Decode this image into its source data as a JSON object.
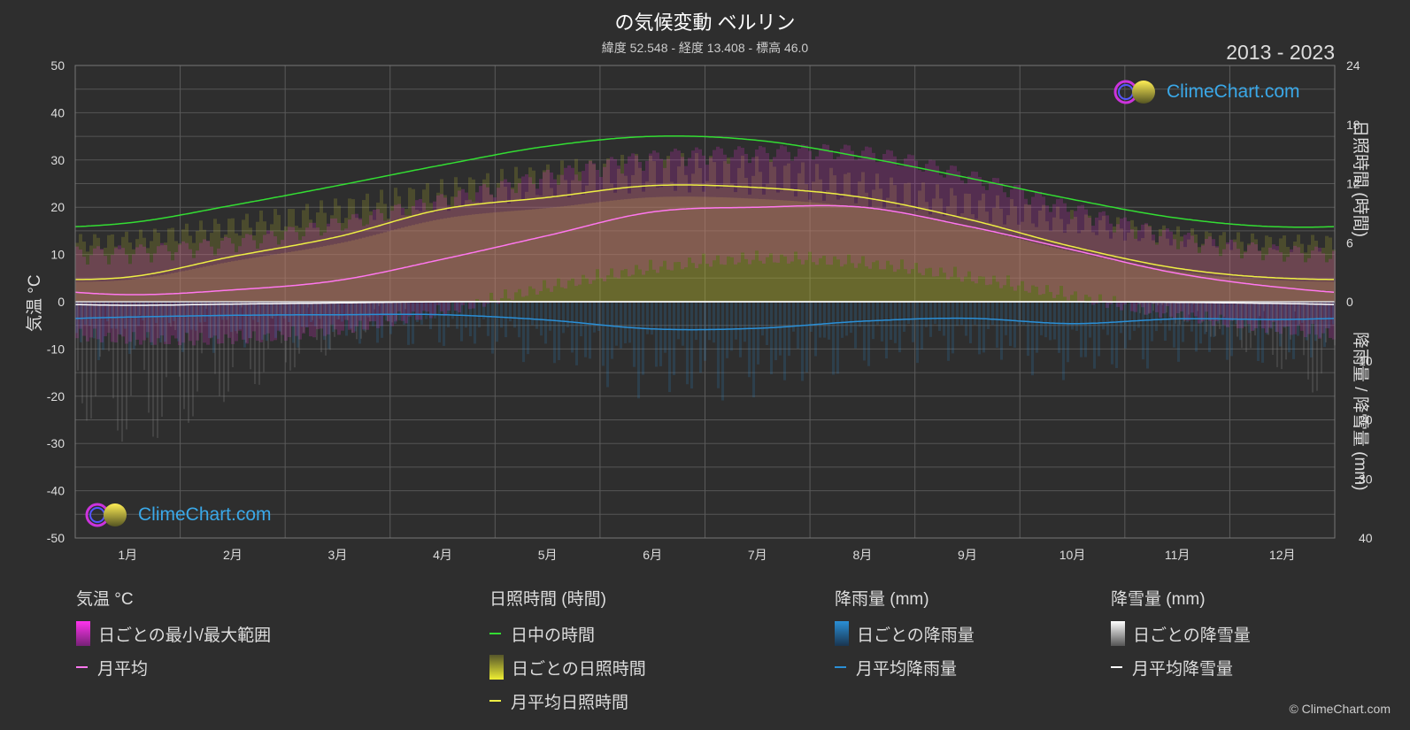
{
  "header": {
    "title": "の気候変動 ベルリン",
    "subtitle": "緯度 52.548 - 経度 13.408 - 標高 46.0",
    "years": "2013 - 2023"
  },
  "axes": {
    "left_title": "気温 °C",
    "right_top_title": "日照時間 (時間)",
    "right_bottom_title": "降雨量 / 降雪量 (mm)",
    "temp_ticks": [
      "50",
      "40",
      "30",
      "20",
      "10",
      "0",
      "-10",
      "-20",
      "-30",
      "-40",
      "-50"
    ],
    "sun_ticks": [
      "24",
      "18",
      "12",
      "6",
      "0"
    ],
    "precip_ticks": [
      "10",
      "20",
      "30",
      "40"
    ]
  },
  "legend": {
    "temperature": {
      "title": "気温 °C",
      "range": "日ごとの最小/最大範囲",
      "avg": "月平均"
    },
    "sunshine": {
      "title": "日照時間 (時間)",
      "daylight": "日中の時間",
      "daily": "日ごとの日照時間",
      "avg": "月平均日照時間"
    },
    "rain": {
      "title": "降雨量 (mm)",
      "daily": "日ごとの降雨量",
      "avg": "月平均降雨量"
    },
    "snow": {
      "title": "降雪量 (mm)",
      "daily": "日ごとの降雪量",
      "avg": "月平均降雪量"
    }
  },
  "logo": {
    "text": "ClimeChart.com"
  },
  "copyright": "© ClimeChart.com",
  "colors": {
    "background": "#2e2e2e",
    "daylight": "#33dd33",
    "sunshine_avg": "#eeee44",
    "sunshine_band": "#b5b52e",
    "temp_range": "#dd33cc",
    "temp_avg": "#ff77ee",
    "rain": "#2a8fd6",
    "snow": "#ffffff",
    "logo_text": "#3aa8e8"
  },
  "chart_data": {
    "type": "line",
    "categories": [
      "1月",
      "2月",
      "3月",
      "4月",
      "5月",
      "6月",
      "7月",
      "8月",
      "9月",
      "10月",
      "11月",
      "12月"
    ],
    "temp_ylim": [
      -50,
      50
    ],
    "sunshine_ylim": [
      0,
      24
    ],
    "precip_ylim": [
      0,
      40
    ],
    "grid": true,
    "series": [
      {
        "name": "日中の時間",
        "axis": "sunshine",
        "values": [
          8.0,
          9.8,
          11.8,
          13.9,
          15.8,
          16.8,
          16.4,
          14.7,
          12.6,
          10.4,
          8.5,
          7.6
        ]
      },
      {
        "name": "月平均日照時間",
        "axis": "sunshine",
        "values": [
          2.5,
          4.6,
          6.6,
          9.4,
          10.6,
          11.8,
          11.6,
          10.6,
          8.4,
          5.6,
          3.4,
          2.4
        ]
      },
      {
        "name": "月平均",
        "axis": "temperature",
        "values": [
          1.5,
          2.5,
          4.5,
          9.0,
          14.0,
          19.0,
          20.0,
          20.0,
          16.0,
          11.0,
          6.0,
          3.0
        ]
      },
      {
        "name": "月平均降雨量",
        "axis": "precipitation",
        "values": [
          2.6,
          2.3,
          2.2,
          2.2,
          3.1,
          4.6,
          4.5,
          3.3,
          2.8,
          3.7,
          2.9,
          3.0
        ]
      },
      {
        "name": "月平均降雪量",
        "axis": "precipitation",
        "values": [
          0.6,
          0.4,
          0.2,
          0.0,
          0.0,
          0.0,
          0.0,
          0.0,
          0.0,
          0.0,
          0.1,
          0.3
        ]
      }
    ],
    "daily_temp_range": {
      "min": [
        -3,
        -3,
        -1,
        3,
        8,
        12,
        14,
        13,
        10,
        6,
        2,
        -1
      ],
      "max": [
        5,
        7,
        11,
        16,
        21,
        25,
        26,
        26,
        21,
        14,
        8,
        5
      ]
    }
  }
}
